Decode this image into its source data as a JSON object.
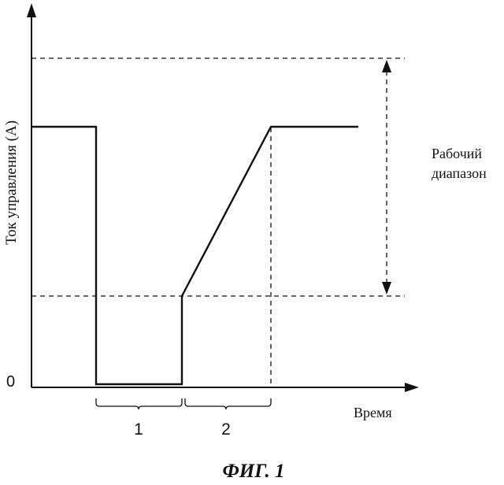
{
  "figure": {
    "y_axis_label": "Ток управления (А)",
    "x_axis_label": "Время",
    "origin_label": "0",
    "range_label_line1": "Рабочий",
    "range_label_line2": "диапазон",
    "interval_1_label": "1",
    "interval_2_label": "2",
    "caption": "ФИГ. 1"
  },
  "colors": {
    "ink": "#111111",
    "background": "#ffffff"
  }
}
